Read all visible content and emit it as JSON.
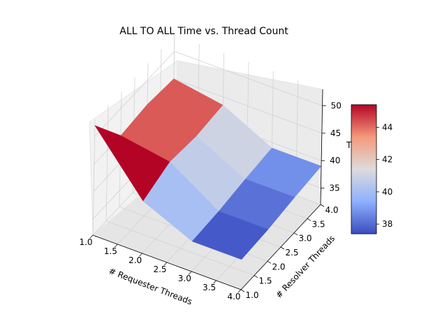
{
  "chart_data": {
    "type": "surface3d",
    "title": "ALL TO ALL Time vs. Thread Count",
    "xlabel": "# Requester Threads",
    "ylabel": "# Resolver Threads",
    "zlabel": "T",
    "x": [
      1,
      2,
      3,
      4
    ],
    "y": [
      1,
      2,
      3,
      4
    ],
    "z": [
      [
        52.0,
        45.0,
        45.5,
        45.0
      ],
      [
        41.5,
        43.5,
        43.0,
        43.5
      ],
      [
        37.5,
        37.8,
        38.5,
        39.0
      ],
      [
        37.5,
        37.8,
        38.5,
        39.0
      ]
    ],
    "x_ticks": [
      "1.0",
      "1.5",
      "2.0",
      "2.5",
      "3.0",
      "3.5",
      "4.0"
    ],
    "y_ticks": [
      "1.0",
      "1.5",
      "2.0",
      "2.5",
      "3.0",
      "3.5",
      "4.0"
    ],
    "z_ticks": [
      "35",
      "40",
      "45",
      "50"
    ],
    "zlim": [
      32,
      53
    ],
    "colormap": "coolwarm",
    "colorbar": {
      "min": 37.4,
      "max": 45.4,
      "ticks": [
        "38",
        "40",
        "42",
        "44"
      ],
      "tick_values": [
        38,
        40,
        42,
        44
      ]
    }
  }
}
